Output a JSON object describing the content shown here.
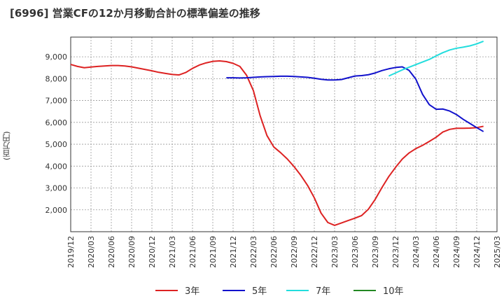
{
  "chart_data": {
    "type": "line",
    "title": "[6996]  営業CFの12か月移動合計の標準偏差の推移",
    "ylabel": "(百万円)",
    "xlabel": "",
    "ylim": [
      1000,
      9900
    ],
    "yticks": [
      2000,
      3000,
      4000,
      5000,
      6000,
      7000,
      8000,
      9000
    ],
    "ytick_labels": [
      "2,000",
      "3,000",
      "4,000",
      "5,000",
      "6,000",
      "7,000",
      "8,000",
      "9,000"
    ],
    "xticks": [
      "2019/12",
      "2020/03",
      "2020/06",
      "2020/09",
      "2020/12",
      "2021/03",
      "2021/06",
      "2021/09",
      "2021/12",
      "2022/03",
      "2022/06",
      "2022/09",
      "2022/12",
      "2023/03",
      "2023/06",
      "2023/09",
      "2023/12",
      "2024/03",
      "2024/06",
      "2024/09",
      "2024/12",
      "2025/03"
    ],
    "x_start": "2019/12",
    "x_end": "2025/03",
    "grid": true,
    "legend_position": "bottom",
    "series": [
      {
        "name": "3年",
        "color": "#dd2222",
        "points": [
          [
            "2019/12",
            8650
          ],
          [
            "2020/01",
            8560
          ],
          [
            "2020/02",
            8500
          ],
          [
            "2020/03",
            8530
          ],
          [
            "2020/04",
            8560
          ],
          [
            "2020/05",
            8580
          ],
          [
            "2020/06",
            8600
          ],
          [
            "2020/07",
            8600
          ],
          [
            "2020/08",
            8580
          ],
          [
            "2020/09",
            8540
          ],
          [
            "2020/10",
            8480
          ],
          [
            "2020/11",
            8420
          ],
          [
            "2020/12",
            8360
          ],
          [
            "2021/01",
            8290
          ],
          [
            "2021/02",
            8240
          ],
          [
            "2021/03",
            8190
          ],
          [
            "2021/04",
            8170
          ],
          [
            "2021/05",
            8280
          ],
          [
            "2021/06",
            8470
          ],
          [
            "2021/07",
            8620
          ],
          [
            "2021/08",
            8720
          ],
          [
            "2021/09",
            8790
          ],
          [
            "2021/10",
            8810
          ],
          [
            "2021/11",
            8780
          ],
          [
            "2021/12",
            8700
          ],
          [
            "2022/01",
            8560
          ],
          [
            "2022/02",
            8150
          ],
          [
            "2022/03",
            7450
          ],
          [
            "2022/04",
            6300
          ],
          [
            "2022/05",
            5400
          ],
          [
            "2022/06",
            4880
          ],
          [
            "2022/07",
            4620
          ],
          [
            "2022/08",
            4330
          ],
          [
            "2022/09",
            3980
          ],
          [
            "2022/10",
            3580
          ],
          [
            "2022/11",
            3120
          ],
          [
            "2022/12",
            2550
          ],
          [
            "2023/01",
            1850
          ],
          [
            "2023/02",
            1420
          ],
          [
            "2023/03",
            1290
          ],
          [
            "2023/04",
            1400
          ],
          [
            "2023/05",
            1510
          ],
          [
            "2023/06",
            1620
          ],
          [
            "2023/07",
            1740
          ],
          [
            "2023/08",
            2030
          ],
          [
            "2023/09",
            2480
          ],
          [
            "2023/10",
            3020
          ],
          [
            "2023/11",
            3520
          ],
          [
            "2023/12",
            3940
          ],
          [
            "2024/01",
            4320
          ],
          [
            "2024/02",
            4600
          ],
          [
            "2024/03",
            4800
          ],
          [
            "2024/04",
            4950
          ],
          [
            "2024/05",
            5130
          ],
          [
            "2024/06",
            5320
          ],
          [
            "2024/07",
            5560
          ],
          [
            "2024/08",
            5680
          ],
          [
            "2024/09",
            5730
          ],
          [
            "2024/10",
            5730
          ],
          [
            "2024/11",
            5740
          ],
          [
            "2024/12",
            5760
          ],
          [
            "2025/01",
            5820
          ]
        ]
      },
      {
        "name": "5年",
        "color": "#1111cc",
        "points": [
          [
            "2021/11",
            8040
          ],
          [
            "2021/12",
            8040
          ],
          [
            "2022/01",
            8030
          ],
          [
            "2022/02",
            8040
          ],
          [
            "2022/03",
            8060
          ],
          [
            "2022/04",
            8080
          ],
          [
            "2022/05",
            8090
          ],
          [
            "2022/06",
            8100
          ],
          [
            "2022/07",
            8110
          ],
          [
            "2022/08",
            8110
          ],
          [
            "2022/09",
            8100
          ],
          [
            "2022/10",
            8080
          ],
          [
            "2022/11",
            8060
          ],
          [
            "2022/12",
            8020
          ],
          [
            "2023/01",
            7970
          ],
          [
            "2023/02",
            7940
          ],
          [
            "2023/03",
            7940
          ],
          [
            "2023/04",
            7960
          ],
          [
            "2023/05",
            8040
          ],
          [
            "2023/06",
            8120
          ],
          [
            "2023/07",
            8140
          ],
          [
            "2023/08",
            8180
          ],
          [
            "2023/09",
            8260
          ],
          [
            "2023/10",
            8370
          ],
          [
            "2023/11",
            8450
          ],
          [
            "2023/12",
            8510
          ],
          [
            "2024/01",
            8540
          ],
          [
            "2024/02",
            8380
          ],
          [
            "2024/03",
            7980
          ],
          [
            "2024/04",
            7280
          ],
          [
            "2024/05",
            6810
          ],
          [
            "2024/06",
            6600
          ],
          [
            "2024/07",
            6610
          ],
          [
            "2024/08",
            6520
          ],
          [
            "2024/09",
            6360
          ],
          [
            "2024/10",
            6140
          ],
          [
            "2024/11",
            5950
          ],
          [
            "2024/12",
            5760
          ],
          [
            "2025/01",
            5580
          ]
        ]
      },
      {
        "name": "7年",
        "color": "#22dddd",
        "points": [
          [
            "2023/11",
            8120
          ],
          [
            "2023/12",
            8260
          ],
          [
            "2024/01",
            8400
          ],
          [
            "2024/02",
            8520
          ],
          [
            "2024/03",
            8640
          ],
          [
            "2024/04",
            8760
          ],
          [
            "2024/05",
            8880
          ],
          [
            "2024/06",
            9040
          ],
          [
            "2024/07",
            9190
          ],
          [
            "2024/08",
            9310
          ],
          [
            "2024/09",
            9390
          ],
          [
            "2024/10",
            9440
          ],
          [
            "2024/11",
            9500
          ],
          [
            "2024/12",
            9590
          ],
          [
            "2025/01",
            9710
          ]
        ]
      },
      {
        "name": "10年",
        "color": "#228822",
        "points": []
      }
    ]
  }
}
